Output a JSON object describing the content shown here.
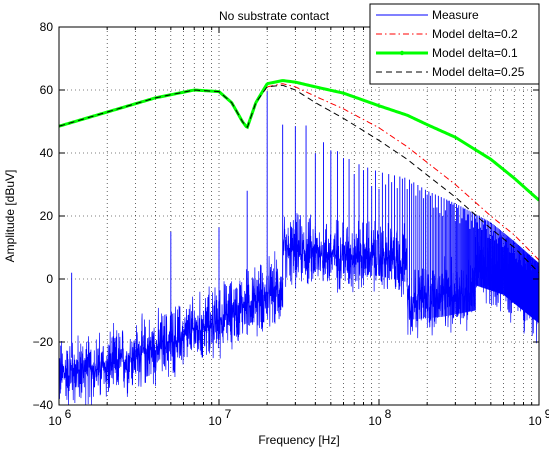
{
  "chart_data": {
    "type": "line",
    "title": "No substrate contact",
    "xlabel": "Frequency [Hz]",
    "ylabel": "Amplitude [dBuV]",
    "xscale": "log",
    "xlim": [
      1000000,
      1000000000
    ],
    "ylim": [
      -40,
      80
    ],
    "grid": true,
    "legend_position": "top-right",
    "x_tick_labels": [
      {
        "base": "10",
        "exp": "6"
      },
      {
        "base": "10",
        "exp": "7"
      },
      {
        "base": "10",
        "exp": "8"
      },
      {
        "base": "10",
        "exp": "9"
      }
    ],
    "y_ticks": [
      -40,
      -20,
      0,
      20,
      40,
      60,
      80
    ],
    "y_tick_labels": [
      "−40",
      "−20",
      "0",
      "20",
      "40",
      "60",
      "80"
    ],
    "series": [
      {
        "name": "Measure",
        "color": "#0000ff",
        "style": "solid",
        "kind": "noise_spectrum",
        "noise_floor": {
          "x": [
            1000000,
            2000000,
            5000000,
            10000000,
            15000000,
            25000000,
            25100000,
            50000000,
            100000000,
            150000000,
            151000000,
            250000000,
            400000000,
            401000000,
            600000000,
            1000000000
          ],
          "y": [
            -30,
            -28,
            -20,
            -13,
            -8,
            -3,
            9,
            8,
            7,
            5,
            -7,
            -6,
            -4,
            4,
            1,
            -8
          ]
        },
        "noise_band": 14,
        "harmonic_fundamental": 5000000,
        "harmonic_count": 200,
        "harmonic_peaks": {
          "x": [
            1200000,
            5000000,
            10000000,
            15000000,
            20000000,
            25000000,
            30000000,
            40000000,
            50000000,
            70000000,
            100000000,
            150000000,
            200000000,
            300000000,
            500000000,
            700000000,
            1000000000
          ],
          "y": [
            2,
            15,
            20,
            28,
            60,
            49,
            53,
            45,
            42,
            37,
            34,
            32,
            28,
            24,
            18,
            12,
            5
          ]
        }
      },
      {
        "name": "Model delta=0.2",
        "color": "#ff0000",
        "style": "dashdot",
        "x": [
          1000000,
          2000000,
          4000000,
          7000000,
          10000000,
          12000000,
          14000000,
          15000000,
          17000000,
          20000000,
          25000000,
          30000000,
          40000000,
          60000000,
          100000000,
          150000000,
          200000000,
          300000000,
          500000000,
          700000000,
          1000000000
        ],
        "y": [
          48.5,
          53,
          57.5,
          60,
          59.5,
          56,
          50,
          48,
          56,
          61,
          62,
          61,
          58,
          54,
          48,
          42,
          37,
          30,
          20,
          14,
          6
        ]
      },
      {
        "name": "Model delta=0.1",
        "color": "#00ff00",
        "style": "solid-dotmarker",
        "x": [
          1000000,
          2000000,
          4000000,
          7000000,
          10000000,
          12000000,
          14000000,
          15000000,
          17000000,
          20000000,
          25000000,
          30000000,
          40000000,
          60000000,
          100000000,
          150000000,
          200000000,
          300000000,
          500000000,
          700000000,
          1000000000
        ],
        "y": [
          48.5,
          53,
          57.5,
          60,
          59.5,
          56,
          50,
          48,
          56,
          62,
          63,
          62.5,
          61,
          59,
          55,
          52,
          49,
          45,
          38,
          32,
          25
        ]
      },
      {
        "name": "Model delta=0.25",
        "color": "#000000",
        "style": "dashed",
        "x": [
          1000000,
          2000000,
          4000000,
          7000000,
          10000000,
          12000000,
          14000000,
          15000000,
          17000000,
          20000000,
          25000000,
          30000000,
          40000000,
          60000000,
          100000000,
          150000000,
          200000000,
          300000000,
          500000000,
          700000000,
          1000000000
        ],
        "y": [
          48.5,
          53,
          57.5,
          60,
          59.5,
          56,
          50,
          48,
          56,
          61,
          61.5,
          60,
          56,
          51,
          44,
          38,
          33,
          26,
          16,
          10,
          2
        ]
      }
    ]
  }
}
